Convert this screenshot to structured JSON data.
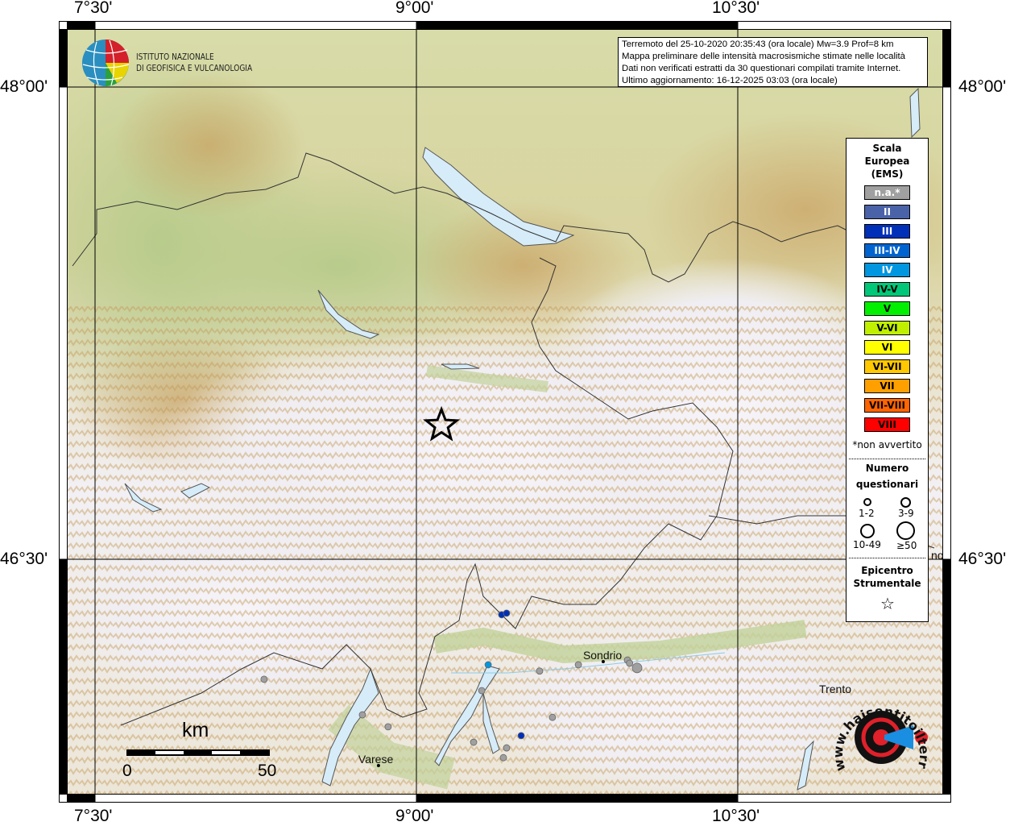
{
  "map": {
    "lon_ticks": [
      "7°30'",
      "9°00'",
      "10°30'"
    ],
    "lat_ticks": [
      "48°00'",
      "46°30'"
    ],
    "lon_values": [
      7.5,
      9.0,
      10.5
    ],
    "lat_values": [
      48.0,
      46.5
    ]
  },
  "header_box": {
    "line1": "Terremoto del 25-10-2020 20:35:43 (ora locale) Mw=3.9 Prof=8 km",
    "line2": "Mappa preliminare delle intensità macrosismiche stimate nelle località",
    "line3": "Dati non verificati estratti da 30 questionari compilati tramite Internet.",
    "line4": "Ultimo aggiornamento: 16-12-2025 03:03 (ora locale)"
  },
  "logo_ingv": {
    "line1": "ISTITUTO NAZIONALE",
    "line2": "DI GEOFISICA E VULCANOLOGIA"
  },
  "logo_hsit": "www.haisentitoilterremoto.it",
  "legend": {
    "title": [
      "Scala",
      "Europea",
      "(EMS)"
    ],
    "classes": [
      {
        "label": "n.a.*",
        "color": "#a0a0a0",
        "text_color": "#ffffff"
      },
      {
        "label": "II",
        "color": "#4a62a8",
        "text_color": "#ffffff"
      },
      {
        "label": "III",
        "color": "#0030b8",
        "text_color": "#ffffff"
      },
      {
        "label": "III-IV",
        "color": "#0064d0",
        "text_color": "#ffffff"
      },
      {
        "label": "IV",
        "color": "#0096e0",
        "text_color": "#ffffff"
      },
      {
        "label": "IV-V",
        "color": "#00c878",
        "text_color": "#000000"
      },
      {
        "label": "V",
        "color": "#00f000",
        "text_color": "#000000"
      },
      {
        "label": "V-VI",
        "color": "#c0f000",
        "text_color": "#000000"
      },
      {
        "label": "VI",
        "color": "#ffff00",
        "text_color": "#000000"
      },
      {
        "label": "VI-VII",
        "color": "#ffc800",
        "text_color": "#000000"
      },
      {
        "label": "VII",
        "color": "#ffa000",
        "text_color": "#000000"
      },
      {
        "label": "VII-VIII",
        "color": "#ff6400",
        "text_color": "#000000"
      },
      {
        "label": "VIII",
        "color": "#ff0000",
        "text_color": "#000000"
      }
    ],
    "note": "*non avvertito",
    "count_title": [
      "Numero",
      "questionari"
    ],
    "count_classes": [
      "1-2",
      "3-9",
      "10-49",
      "≥50"
    ],
    "epicenter_title": [
      "Epicentro",
      "Strumentale"
    ]
  },
  "epicenter": {
    "lon": 9.117,
    "lat": 46.925
  },
  "observations": [
    {
      "lon": 9.398,
      "lat": 46.324,
      "intensity": "III",
      "count": "1-2"
    },
    {
      "lon": 9.421,
      "lat": 46.329,
      "intensity": "III",
      "count": "1-2"
    },
    {
      "lon": 9.335,
      "lat": 46.165,
      "intensity": "IV",
      "count": "1-2"
    },
    {
      "lon": 9.575,
      "lat": 46.145,
      "intensity": "n.a.*",
      "count": "1-2"
    },
    {
      "lon": 9.756,
      "lat": 46.165,
      "intensity": "n.a.*",
      "count": "1-2"
    },
    {
      "lon": 9.985,
      "lat": 46.18,
      "intensity": "n.a.*",
      "count": "1-2"
    },
    {
      "lon": 9.995,
      "lat": 46.17,
      "intensity": "n.a.*",
      "count": "1-2"
    },
    {
      "lon": 10.03,
      "lat": 46.155,
      "intensity": "n.a.*",
      "count": "3-9"
    },
    {
      "lon": 9.305,
      "lat": 46.083,
      "intensity": "n.a.*",
      "count": "1-2"
    },
    {
      "lon": 9.635,
      "lat": 45.998,
      "intensity": "n.a.*",
      "count": "1-2"
    },
    {
      "lon": 9.489,
      "lat": 45.94,
      "intensity": "III",
      "count": "1-2"
    },
    {
      "lon": 9.267,
      "lat": 45.919,
      "intensity": "n.a.*",
      "count": "1-2"
    },
    {
      "lon": 9.421,
      "lat": 45.901,
      "intensity": "n.a.*",
      "count": "1-2"
    },
    {
      "lon": 9.406,
      "lat": 45.87,
      "intensity": "n.a.*",
      "count": "1-2"
    },
    {
      "lon": 8.289,
      "lat": 46.119,
      "intensity": "n.a.*",
      "count": "1-2"
    },
    {
      "lon": 8.748,
      "lat": 46.006,
      "intensity": "n.a.*",
      "count": "1-2"
    },
    {
      "lon": 8.868,
      "lat": 45.968,
      "intensity": "n.a.*",
      "count": "1-2"
    }
  ],
  "cities": [
    {
      "name": "Sondrio",
      "lon": 9.872,
      "lat": 46.175
    },
    {
      "name": "Varese",
      "lon": 8.823,
      "lat": 45.845
    },
    {
      "name": "Trento",
      "lon": 11.128,
      "lat": 46.088
    }
  ],
  "cut_label": "no",
  "scale_bar": {
    "unit": "km",
    "min": "0",
    "max": "50"
  }
}
